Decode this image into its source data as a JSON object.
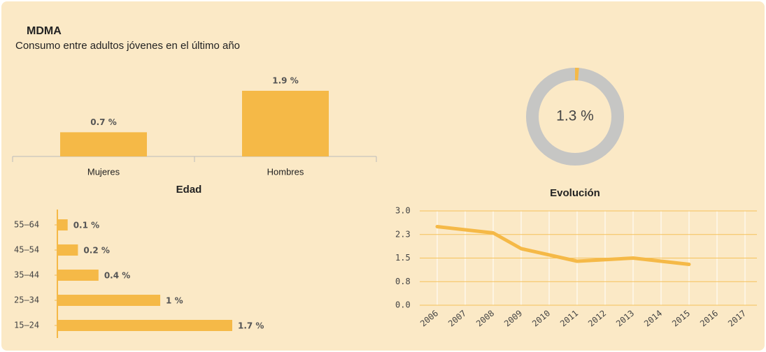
{
  "title": "MDMA",
  "subtitle": "Consumo entre adultos jóvenes en el último año",
  "chart_data": [
    {
      "type": "bar",
      "categories": [
        "Mujeres",
        "Hombres"
      ],
      "values": [
        0.7,
        1.9
      ],
      "value_labels": [
        "0.7 %",
        "1.9 %"
      ],
      "color": "#f5b947"
    },
    {
      "type": "donut",
      "values": [
        1.3
      ],
      "value_labels": [
        "1.3 %"
      ],
      "color": "#f5b947"
    },
    {
      "type": "hbar",
      "title": "Edad",
      "categories": [
        "55–64",
        "45–54",
        "35–44",
        "25–34",
        "15–24"
      ],
      "values": [
        0.1,
        0.2,
        0.4,
        1,
        1.7
      ],
      "value_labels": [
        "0.1 %",
        "0.2 %",
        "0.4 %",
        "1 %",
        "1.7 %"
      ],
      "color": "#f5b947"
    },
    {
      "type": "line",
      "title": "Evolución",
      "x": [
        2006,
        2008,
        2009,
        2011,
        2013,
        2015
      ],
      "values": [
        2.5,
        2.3,
        1.8,
        1.4,
        1.5,
        1.3
      ],
      "color": "#f5b947",
      "xlim": [
        2006,
        2017
      ],
      "xticks": [
        2006,
        2007,
        2008,
        2009,
        2010,
        2011,
        2012,
        2013,
        2014,
        2015,
        2016,
        2017
      ],
      "ylim": [
        0,
        3
      ],
      "yticks": [
        {
          "value": 0,
          "label": "0.0"
        },
        {
          "value": 0.75,
          "label": "0.8"
        },
        1.5,
        {
          "value": 2.25,
          "label": "2.3"
        },
        {
          "value": 3,
          "label": "3.0"
        }
      ],
      "grid": true
    }
  ]
}
